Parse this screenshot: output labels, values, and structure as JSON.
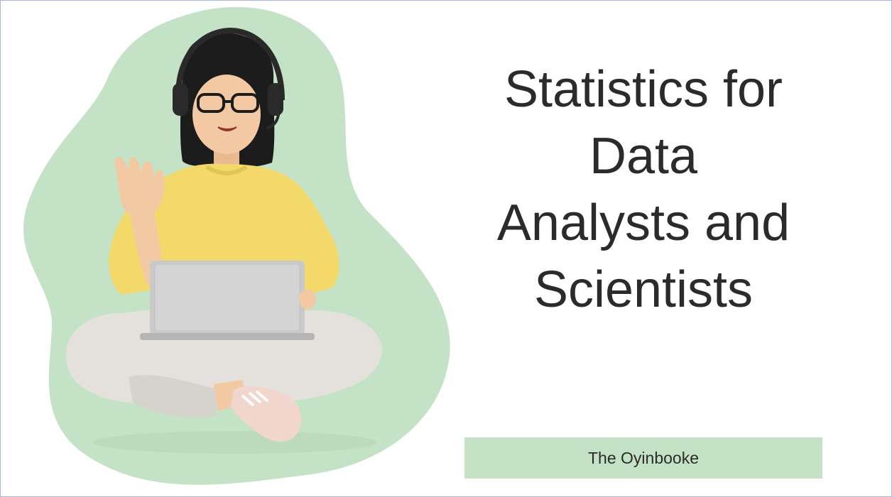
{
  "slide": {
    "title_lines": [
      "Statistics for",
      "Data",
      "Analysts and",
      "Scientists"
    ],
    "author": "The Oyinbooke"
  },
  "illustration": {
    "subject": "person-with-headset-and-laptop",
    "blob_color": "#c4e3c6",
    "shirt_color": "#f2d96a",
    "pants_color": "#e4e1dd",
    "hair_color": "#1c1c1c",
    "skin_color": "#f3c9a4",
    "laptop_color": "#c9c9c9"
  },
  "colors": {
    "text": "#2b2b2b",
    "accent": "#c4e3c6",
    "border": "#a9b4e6"
  }
}
